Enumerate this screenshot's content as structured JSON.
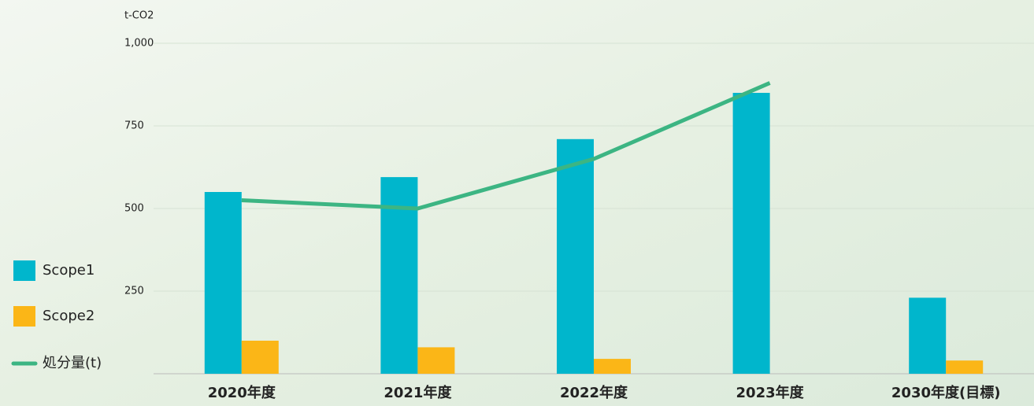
{
  "chart_data": {
    "type": "bar",
    "y_axis_label": "t-CO2",
    "categories": [
      "2020年度",
      "2021年度",
      "2022年度",
      "2023年度",
      "2030年度(目標)"
    ],
    "series": [
      {
        "name": "Scope1",
        "type": "bar",
        "color": "#00b6cc",
        "values": [
          550,
          595,
          710,
          850,
          230
        ]
      },
      {
        "name": "Scope2",
        "type": "bar",
        "color": "#fbb617",
        "values": [
          100,
          80,
          45,
          null,
          40
        ]
      },
      {
        "name": "処分量(t)",
        "type": "line",
        "color": "#3cb583",
        "values": [
          525,
          500,
          650,
          880,
          null
        ]
      }
    ],
    "ylim": [
      0,
      1000
    ],
    "yticks": [
      250,
      500,
      750,
      {
        "value": 1000,
        "label": "1,000"
      }
    ],
    "grid": true
  }
}
